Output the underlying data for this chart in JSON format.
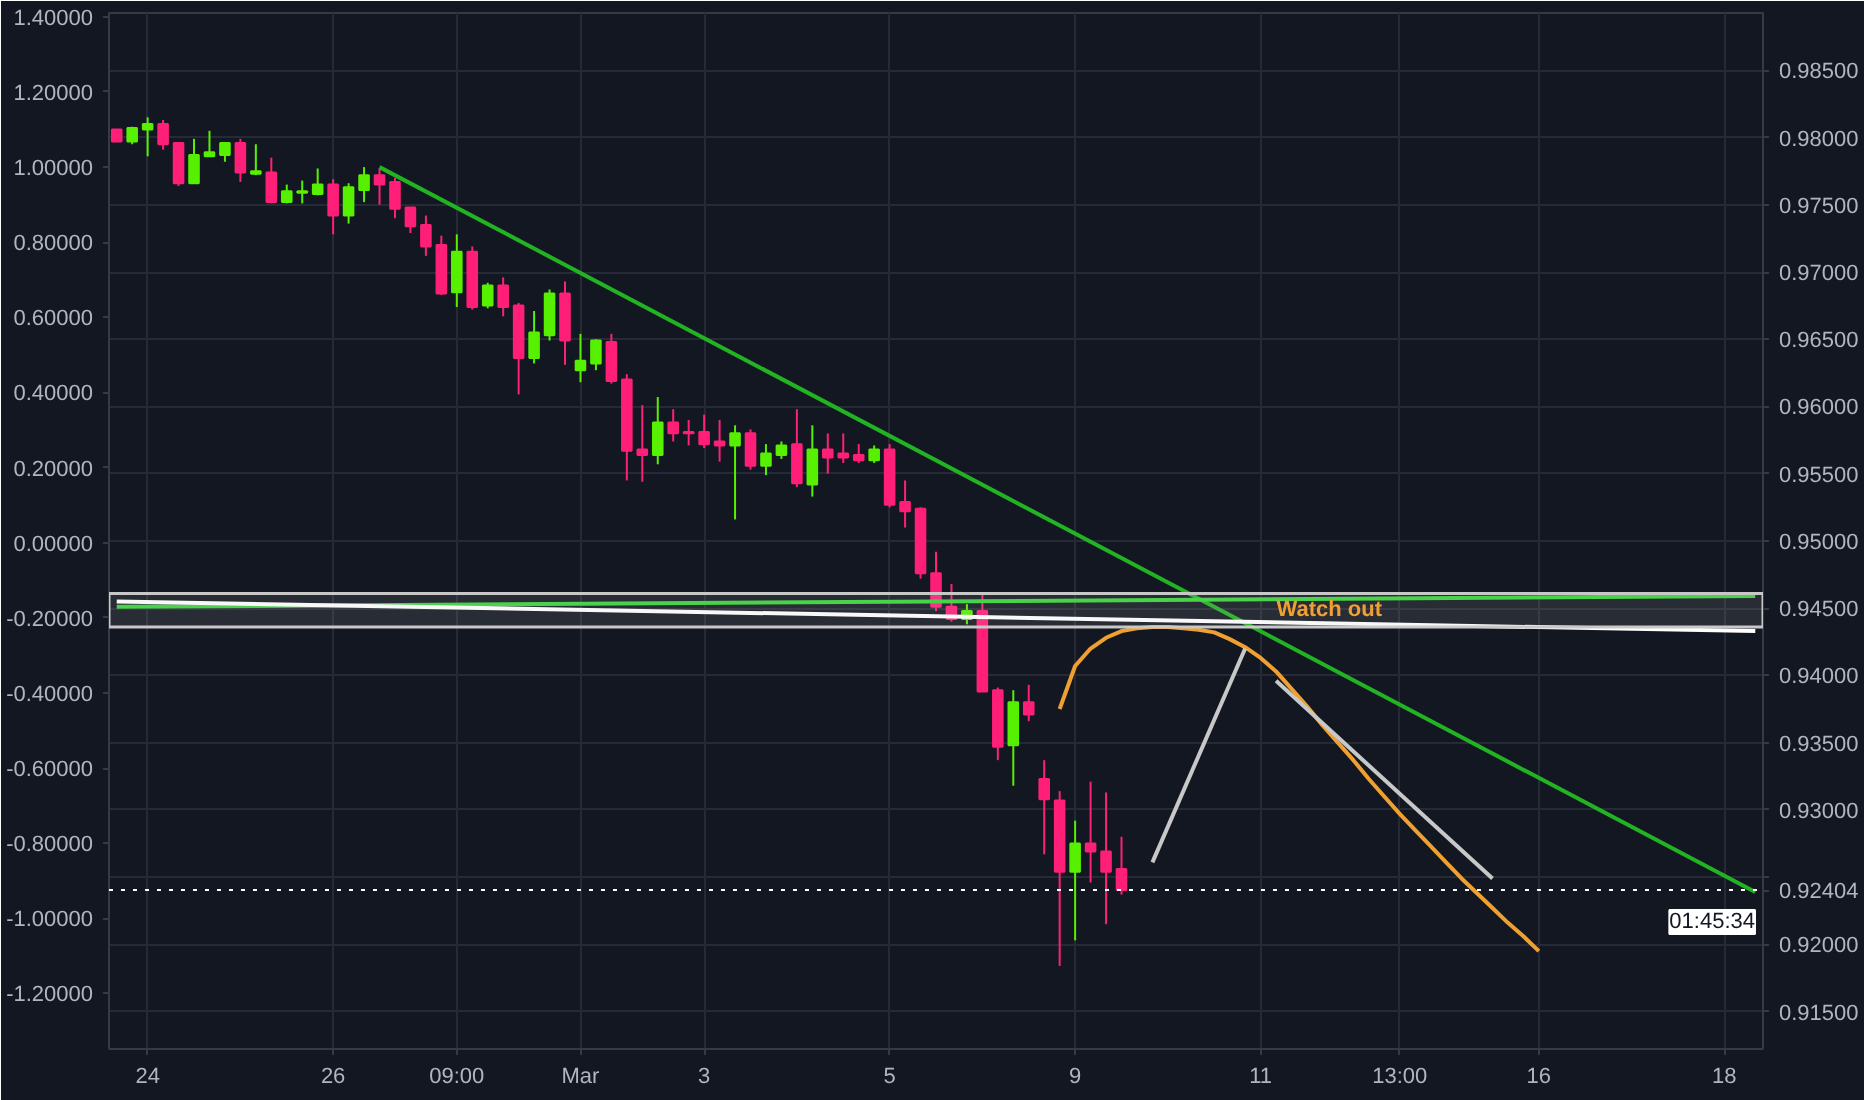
{
  "chart_data": {
    "type": "candlestick",
    "categories": [
      null,
      null,
      "24",
      null,
      null,
      null,
      null,
      null,
      null,
      null,
      null,
      null,
      null,
      null,
      "26",
      null,
      null,
      null,
      null,
      null,
      null,
      null,
      "09:00",
      null,
      null,
      null,
      null,
      null,
      null,
      null,
      "Mar",
      null,
      null,
      null,
      null,
      null,
      null,
      null,
      "3",
      null,
      null,
      null,
      null,
      null,
      null,
      null,
      null,
      null,
      null,
      null,
      "5",
      null,
      null,
      null,
      null,
      null,
      null,
      null,
      null,
      null,
      null,
      null,
      "9",
      null,
      null,
      null,
      null,
      null,
      null,
      null,
      null,
      null,
      null,
      null,
      "11",
      null,
      null,
      null,
      null,
      null,
      null,
      null,
      null,
      "13:00",
      null,
      null,
      null,
      null,
      null,
      null,
      null,
      null,
      "16",
      null,
      null,
      null,
      null,
      null,
      null,
      null,
      null,
      null,
      null,
      null,
      "18",
      null,
      null
    ],
    "ylim": [
      -1.348,
      1.41
    ],
    "y2lim": [
      0.91222,
      0.98926
    ],
    "yticks": [
      {
        "value": 1.4,
        "label": "1.40000"
      },
      {
        "value": 1.2,
        "label": "1.20000"
      },
      {
        "value": 1.0,
        "label": "1.00000"
      },
      {
        "value": 0.8,
        "label": "0.80000"
      },
      {
        "value": 0.6,
        "label": "0.60000"
      },
      {
        "value": 0.4,
        "label": "0.40000"
      },
      {
        "value": 0.2,
        "label": "0.20000"
      },
      {
        "value": 0,
        "label": "0.00000"
      },
      {
        "value": -0.2,
        "label": "-0.20000"
      },
      {
        "value": -0.4,
        "label": "-0.40000"
      },
      {
        "value": -0.6,
        "label": "-0.60000"
      },
      {
        "value": -0.8,
        "label": "-0.80000"
      },
      {
        "value": -1.0,
        "label": "-1.00000"
      },
      {
        "value": -1.2,
        "label": "-1.20000"
      }
    ],
    "y2ticks": [
      {
        "value": 0.915,
        "label": "0.91500"
      },
      {
        "value": 0.92,
        "label": "0.92000"
      },
      {
        "value": 0.925,
        "label": null
      },
      {
        "value": 0.93,
        "label": "0.93000"
      },
      {
        "value": 0.935,
        "label": "0.93500"
      },
      {
        "value": 0.94,
        "label": "0.94000"
      },
      {
        "value": 0.945,
        "label": "0.94500"
      },
      {
        "value": 0.95,
        "label": "0.95000"
      },
      {
        "value": 0.955,
        "label": "0.95500"
      },
      {
        "value": 0.96,
        "label": "0.96000"
      },
      {
        "value": 0.965,
        "label": "0.96500"
      },
      {
        "value": 0.97,
        "label": "0.97000"
      },
      {
        "value": 0.975,
        "label": "0.97500"
      },
      {
        "value": 0.98,
        "label": "0.98000"
      },
      {
        "value": 0.985,
        "label": "0.98500"
      }
    ],
    "grid": true,
    "series": [
      {
        "axis": "y2",
        "ohlc": [
          [
            0.9806,
            0.9806,
            0.9797,
            0.9797
          ],
          [
            0.9797,
            0.9808,
            0.9795,
            0.9807
          ],
          [
            0.9806,
            0.9815,
            0.9786,
            0.981
          ],
          [
            0.981,
            0.9813,
            0.9791,
            0.9795
          ],
          [
            0.9796,
            0.9796,
            0.9764,
            0.9766
          ],
          [
            0.9766,
            0.9799,
            0.9766,
            0.9787
          ],
          [
            0.9786,
            0.9805,
            0.9786,
            0.9789
          ],
          [
            0.9787,
            0.9796,
            0.9782,
            0.9796
          ],
          [
            0.9796,
            0.9799,
            0.9767,
            0.9774
          ],
          [
            0.9773,
            0.9795,
            0.9772,
            0.9775
          ],
          [
            0.9774,
            0.9785,
            0.9751,
            0.9752
          ],
          [
            0.9752,
            0.9765,
            0.9751,
            0.976
          ],
          [
            0.9759,
            0.9768,
            0.9751,
            0.976
          ],
          [
            0.9758,
            0.9777,
            0.9757,
            0.9765
          ],
          [
            0.9765,
            0.9769,
            0.9728,
            0.9742
          ],
          [
            0.9742,
            0.9766,
            0.9736,
            0.9763
          ],
          [
            0.9761,
            0.9778,
            0.9752,
            0.9772
          ],
          [
            0.9772,
            0.9777,
            0.975,
            0.9765
          ],
          [
            0.9767,
            0.977,
            0.974,
            0.9747
          ],
          [
            0.9748,
            0.9748,
            0.9729,
            0.9734
          ],
          [
            0.9735,
            0.9742,
            0.9712,
            0.9719
          ],
          [
            0.972,
            0.9727,
            0.9683,
            0.9684
          ],
          [
            0.9685,
            0.9728,
            0.9674,
            0.9715
          ],
          [
            0.9715,
            0.9719,
            0.9672,
            0.9674
          ],
          [
            0.9675,
            0.9692,
            0.9673,
            0.969
          ],
          [
            0.969,
            0.9696,
            0.9667,
            0.9674
          ],
          [
            0.9675,
            0.9677,
            0.9609,
            0.9636
          ],
          [
            0.9636,
            0.9671,
            0.9632,
            0.9655
          ],
          [
            0.9653,
            0.9687,
            0.9649,
            0.9684
          ],
          [
            0.9684,
            0.9693,
            0.9631,
            0.9649
          ],
          [
            0.9627,
            0.9654,
            0.9618,
            0.9634
          ],
          [
            0.9632,
            0.965,
            0.9627,
            0.9649
          ],
          [
            0.9648,
            0.9654,
            0.9617,
            0.9619
          ],
          [
            0.962,
            0.9624,
            0.9545,
            0.9567
          ],
          [
            0.9568,
            0.9601,
            0.9544,
            0.9564
          ],
          [
            0.9564,
            0.9607,
            0.9557,
            0.9588
          ],
          [
            0.9588,
            0.9598,
            0.9574,
            0.958
          ],
          [
            0.9581,
            0.959,
            0.9571,
            0.958
          ],
          [
            0.9581,
            0.9594,
            0.9569,
            0.9572
          ],
          [
            0.9574,
            0.959,
            0.9559,
            0.9571
          ],
          [
            0.9571,
            0.9586,
            0.9516,
            0.958
          ],
          [
            0.958,
            0.9583,
            0.9553,
            0.9556
          ],
          [
            0.9556,
            0.9572,
            0.9549,
            0.9565
          ],
          [
            0.9564,
            0.9574,
            0.9561,
            0.9571
          ],
          [
            0.9572,
            0.9598,
            0.954,
            0.9543
          ],
          [
            0.9542,
            0.9586,
            0.9533,
            0.9568
          ],
          [
            0.9568,
            0.958,
            0.955,
            0.9562
          ],
          [
            0.9565,
            0.958,
            0.9558,
            0.9562
          ],
          [
            0.9564,
            0.9572,
            0.9558,
            0.956
          ],
          [
            0.956,
            0.9571,
            0.9558,
            0.9568
          ],
          [
            0.9568,
            0.9572,
            0.9525,
            0.9527
          ],
          [
            0.9529,
            0.9545,
            0.951,
            0.9522
          ],
          [
            0.9524,
            0.9525,
            0.9472,
            0.9476
          ],
          [
            0.9476,
            0.9492,
            0.9448,
            0.9451
          ],
          [
            0.9451,
            0.9468,
            0.944,
            0.9442
          ],
          [
            0.9442,
            0.9453,
            0.9438,
            0.9448
          ],
          [
            0.9448,
            0.9461,
            0.9388,
            0.9388
          ],
          [
            0.9389,
            0.9391,
            0.9337,
            0.9347
          ],
          [
            0.9348,
            0.9389,
            0.9318,
            0.938
          ],
          [
            0.938,
            0.9393,
            0.9366,
            0.9371
          ],
          [
            0.9323,
            0.9337,
            0.9267,
            0.9308
          ],
          [
            0.9307,
            0.9314,
            0.9184,
            0.9254
          ],
          [
            0.9254,
            0.9292,
            0.9203,
            0.9275
          ],
          [
            0.9275,
            0.9321,
            0.9246,
            0.9269
          ],
          [
            0.9269,
            0.9313,
            0.9215,
            0.9254
          ],
          [
            0.9256,
            0.928,
            0.9237,
            0.92404
          ],
          null,
          null,
          null,
          null,
          null,
          null,
          null,
          null,
          null,
          null,
          null,
          null,
          null,
          null,
          null,
          null,
          null,
          null,
          null,
          null,
          null,
          null,
          null,
          null,
          null,
          null,
          null,
          null,
          null,
          null,
          null,
          null,
          null,
          null,
          null,
          null,
          null,
          null,
          null,
          null,
          null
        ],
        "colors": [
          "#ff1f78",
          "#56f000",
          "#56f000",
          "#ff1f78",
          "#ff1f78",
          "#56f000",
          "#56f000",
          "#56f000",
          "#ff1f78",
          "#56f000",
          "#ff1f78",
          "#56f000",
          "#56f000",
          "#56f000",
          "#ff1f78",
          "#56f000",
          "#56f000",
          "#ff1f78",
          "#ff1f78",
          "#ff1f78",
          "#ff1f78",
          "#ff1f78",
          "#56f000",
          "#ff1f78",
          "#56f000",
          "#ff1f78",
          "#ff1f78",
          "#56f000",
          "#56f000",
          "#ff1f78",
          "#56f000",
          "#56f000",
          "#ff1f78",
          "#ff1f78",
          "#ff1f78",
          "#56f000",
          "#ff1f78",
          "#ff1f78",
          "#ff1f78",
          "#ff1f78",
          "#56f000",
          "#ff1f78",
          "#56f000",
          "#56f000",
          "#ff1f78",
          "#56f000",
          "#ff1f78",
          "#ff1f78",
          "#ff1f78",
          "#56f000",
          "#ff1f78",
          "#ff1f78",
          "#ff1f78",
          "#ff1f78",
          "#ff1f78",
          "#56f000",
          "#ff1f78",
          "#ff1f78",
          "#56f000",
          "#ff1f78",
          "#ff1f78",
          "#ff1f78",
          "#56f000",
          "#ff1f78",
          "#ff1f78",
          "#ff1f78",
          null,
          null,
          null,
          null,
          null,
          null,
          null,
          null,
          null,
          null,
          null,
          null,
          null,
          null,
          null,
          null,
          null,
          null,
          null,
          null,
          null,
          null,
          null,
          null,
          null,
          null,
          null,
          null,
          null,
          null,
          null,
          null,
          null,
          null,
          null,
          null,
          null,
          null,
          null,
          null,
          null
        ]
      },
      {
        "type": "line",
        "axis": "y2",
        "color": "#22b322",
        "values": [
          null,
          null,
          null,
          null,
          null,
          null,
          null,
          null,
          null,
          null,
          null,
          null,
          null,
          null,
          null,
          null,
          null,
          0.9778,
          null,
          null,
          null,
          null,
          null,
          null,
          null,
          null,
          null,
          null,
          null,
          null,
          null,
          null,
          null,
          null,
          null,
          null,
          null,
          null,
          null,
          null,
          null,
          null,
          null,
          null,
          null,
          null,
          null,
          null,
          null,
          null,
          null,
          null,
          null,
          null,
          null,
          null,
          null,
          null,
          null,
          null,
          null,
          null,
          null,
          null,
          null,
          null,
          null,
          null,
          null,
          null,
          null,
          null,
          null,
          null,
          null,
          null,
          null,
          null,
          null,
          null,
          null,
          null,
          null,
          null,
          null,
          null,
          null,
          null,
          null,
          null,
          null,
          null,
          null,
          null,
          null,
          null,
          null,
          null,
          null,
          null,
          null,
          null,
          null,
          null,
          null,
          null,
          0.9239
        ]
      },
      {
        "type": "line",
        "axis": "y2",
        "color": "#3ad43a",
        "values": [
          0.9451,
          null,
          null,
          null,
          null,
          null,
          null,
          null,
          null,
          null,
          null,
          null,
          null,
          null,
          null,
          null,
          null,
          null,
          null,
          null,
          null,
          null,
          null,
          null,
          null,
          null,
          null,
          null,
          null,
          null,
          null,
          null,
          null,
          null,
          null,
          null,
          null,
          null,
          null,
          null,
          null,
          null,
          null,
          null,
          null,
          null,
          null,
          null,
          null,
          null,
          null,
          null,
          null,
          null,
          null,
          null,
          null,
          null,
          null,
          null,
          null,
          null,
          null,
          null,
          null,
          null,
          null,
          null,
          null,
          null,
          null,
          null,
          null,
          null,
          null,
          null,
          null,
          null,
          null,
          null,
          null,
          null,
          null,
          null,
          null,
          null,
          null,
          null,
          null,
          null,
          null,
          null,
          null,
          null,
          null,
          null,
          null,
          null,
          null,
          null,
          null,
          null,
          null,
          null,
          null,
          null,
          0.9459
        ]
      },
      {
        "type": "line",
        "axis": "y2",
        "color": "#ffffff",
        "values": [
          0.9455,
          null,
          null,
          null,
          null,
          null,
          null,
          null,
          null,
          null,
          null,
          null,
          null,
          null,
          null,
          null,
          null,
          null,
          null,
          null,
          null,
          null,
          null,
          null,
          null,
          null,
          null,
          null,
          null,
          null,
          null,
          null,
          null,
          null,
          null,
          null,
          null,
          null,
          null,
          null,
          null,
          null,
          null,
          null,
          null,
          null,
          null,
          null,
          null,
          null,
          null,
          null,
          null,
          null,
          null,
          null,
          null,
          null,
          null,
          null,
          null,
          null,
          null,
          null,
          null,
          null,
          null,
          null,
          null,
          null,
          null,
          null,
          null,
          null,
          null,
          null,
          null,
          null,
          null,
          null,
          null,
          null,
          null,
          null,
          null,
          null,
          null,
          null,
          null,
          null,
          null,
          null,
          null,
          null,
          null,
          null,
          null,
          null,
          null,
          null,
          null,
          null,
          null,
          null,
          null,
          null,
          0.9433
        ]
      },
      {
        "type": "line",
        "axis": "y2",
        "color": "#f0a030",
        "values": [
          null,
          null,
          null,
          null,
          null,
          null,
          null,
          null,
          null,
          null,
          null,
          null,
          null,
          null,
          null,
          null,
          null,
          null,
          null,
          null,
          null,
          null,
          null,
          null,
          null,
          null,
          null,
          null,
          null,
          null,
          null,
          null,
          null,
          null,
          null,
          null,
          null,
          null,
          null,
          null,
          null,
          null,
          null,
          null,
          null,
          null,
          null,
          null,
          null,
          null,
          null,
          null,
          null,
          null,
          null,
          null,
          null,
          null,
          null,
          null,
          null,
          0.9375,
          0.9407,
          0.942,
          0.9428,
          0.9433,
          0.9435,
          0.9436,
          0.9436,
          0.9435,
          0.9434,
          0.9432,
          0.9427,
          0.9421,
          0.9413,
          0.9403,
          0.939,
          0.9377,
          0.9363,
          0.935,
          0.9337,
          0.9323,
          0.931,
          0.9297,
          0.9285,
          0.9273,
          0.9261,
          0.9249,
          0.9238,
          0.9227,
          0.9216,
          0.9206,
          0.9195,
          null,
          null,
          null,
          null,
          null,
          null,
          null,
          null,
          null,
          null,
          null,
          null,
          null,
          null
        ]
      },
      {
        "type": "line",
        "axis": "y2",
        "color": "#c8c8c8",
        "values": [
          null,
          null,
          null,
          null,
          null,
          null,
          null,
          null,
          null,
          null,
          null,
          null,
          null,
          null,
          null,
          null,
          null,
          null,
          null,
          null,
          null,
          null,
          null,
          null,
          null,
          null,
          null,
          null,
          null,
          null,
          null,
          null,
          null,
          null,
          null,
          null,
          null,
          null,
          null,
          null,
          null,
          null,
          null,
          null,
          null,
          null,
          null,
          null,
          null,
          null,
          null,
          null,
          null,
          null,
          null,
          null,
          null,
          null,
          null,
          null,
          null,
          null,
          null,
          null,
          null,
          null,
          null,
          0.9261,
          null,
          null,
          null,
          null,
          null,
          0.942,
          null,
          null,
          null,
          null,
          null,
          null,
          null,
          null,
          null,
          null,
          null,
          null,
          null,
          null,
          null,
          null,
          null,
          null,
          null,
          null,
          null,
          null,
          null,
          null,
          null,
          null,
          null,
          null,
          null,
          null,
          null,
          null,
          null
        ]
      },
      {
        "type": "line",
        "axis": "y2",
        "color": "#c8c8c8",
        "values": [
          null,
          null,
          null,
          null,
          null,
          null,
          null,
          null,
          null,
          null,
          null,
          null,
          null,
          null,
          null,
          null,
          null,
          null,
          null,
          null,
          null,
          null,
          null,
          null,
          null,
          null,
          null,
          null,
          null,
          null,
          null,
          null,
          null,
          null,
          null,
          null,
          null,
          null,
          null,
          null,
          null,
          null,
          null,
          null,
          null,
          null,
          null,
          null,
          null,
          null,
          null,
          null,
          null,
          null,
          null,
          null,
          null,
          null,
          null,
          null,
          null,
          null,
          null,
          null,
          null,
          null,
          null,
          null,
          null,
          null,
          null,
          null,
          null,
          null,
          null,
          0.9396,
          null,
          null,
          null,
          null,
          null,
          null,
          null,
          null,
          null,
          null,
          null,
          null,
          null,
          0.9249,
          null,
          null,
          null,
          null,
          null,
          null,
          null,
          null,
          null,
          null,
          null,
          null,
          null,
          null,
          null,
          null,
          null
        ]
      }
    ],
    "bands": [
      {
        "axis": "y2",
        "from": 0.9436,
        "to": 0.9461,
        "label": "Watch out",
        "color": "#c8c8c8"
      }
    ],
    "ref_lines": [
      {
        "axis": "y2",
        "value": 0.92404,
        "label": "0.92404",
        "color": "#ffffff",
        "line_style": "dotted"
      }
    ],
    "annotations": [
      "01:45:34"
    ]
  }
}
